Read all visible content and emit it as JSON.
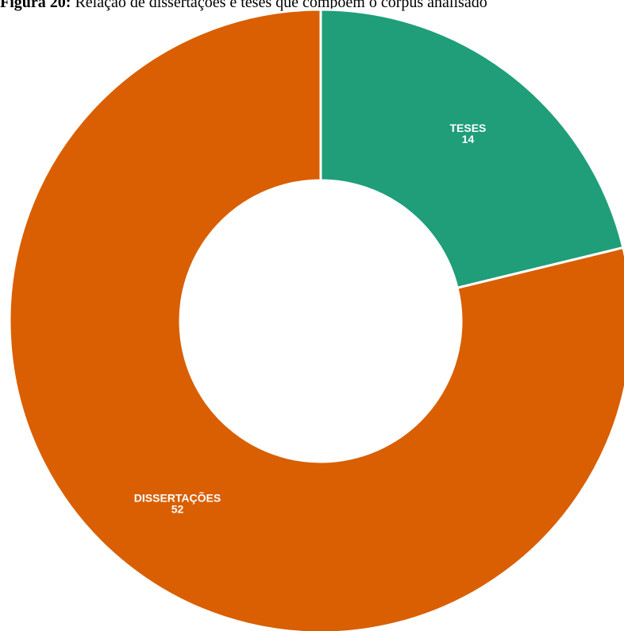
{
  "caption": {
    "label": "Figura 20:",
    "text": " Relação de dissertações e teses que compõem o corpus analisado"
  },
  "chart_data": {
    "type": "pie",
    "variant": "donut",
    "categories": [
      "TESES",
      "DISSERTAÇÕES"
    ],
    "values": [
      14,
      52
    ],
    "colors": [
      "#1f9e79",
      "#d95f02"
    ],
    "data_labels": [
      {
        "name": "TESES",
        "value": "14"
      },
      {
        "name": "DISSERTAÇÕES",
        "value": "52"
      }
    ]
  }
}
